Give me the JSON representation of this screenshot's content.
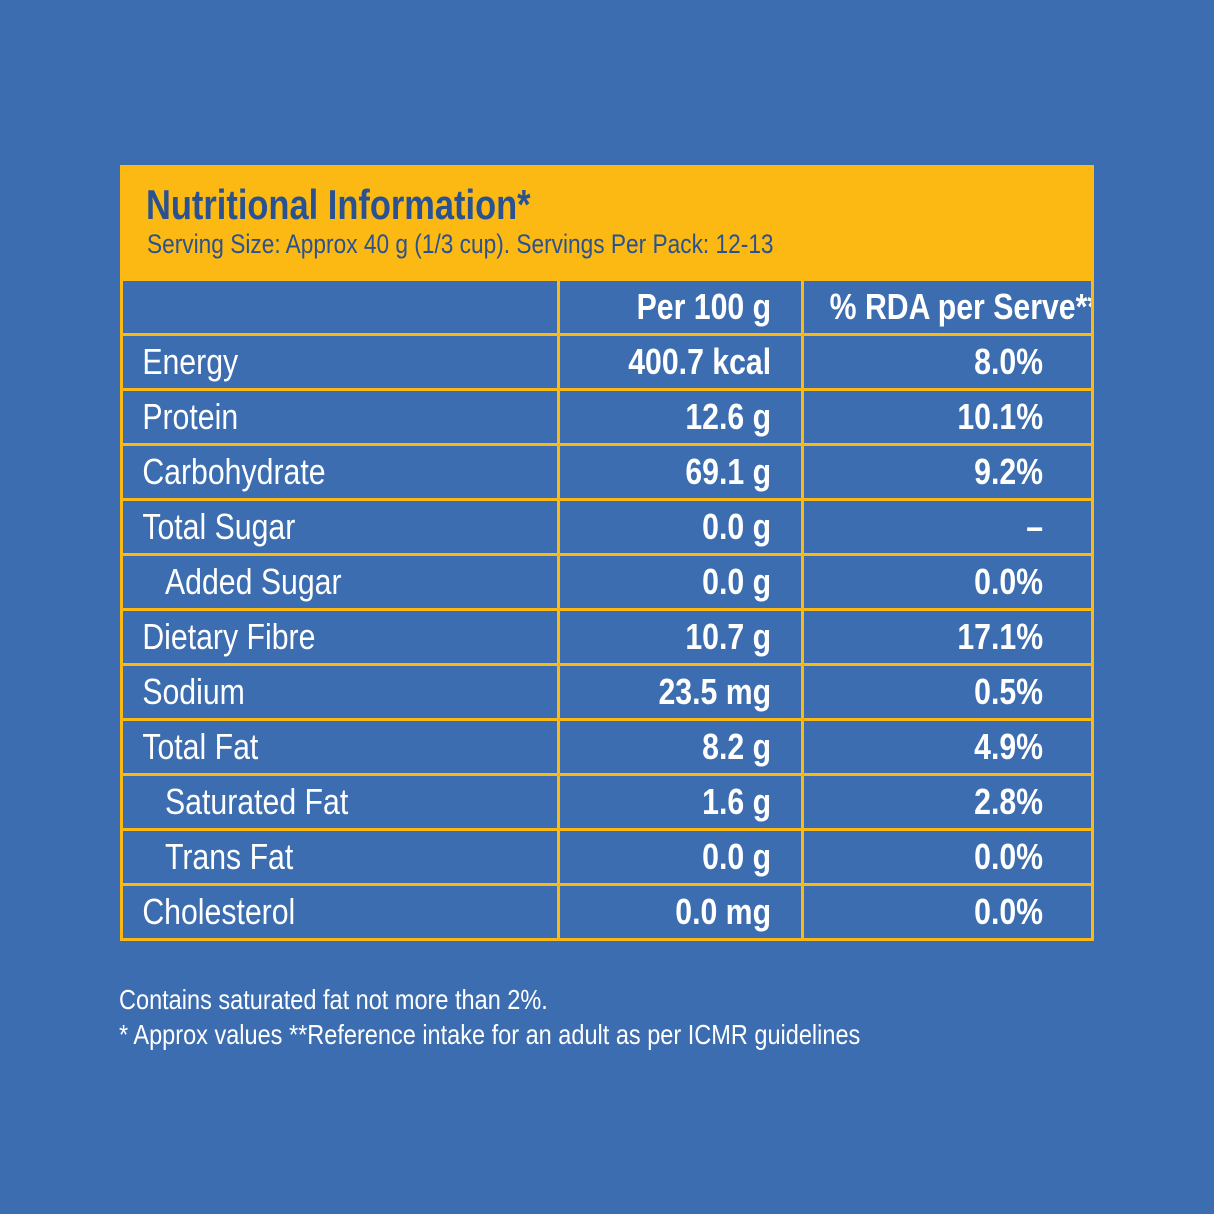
{
  "colors": {
    "background": "#3b6db0",
    "accent": "#fdb913",
    "title": "#2a5290"
  },
  "header": {
    "title": "Nutritional Information*",
    "subtitle": "Serving Size: Approx 40 g (1/3 cup). Servings Per Pack: 12-13"
  },
  "columns": [
    "",
    "Per 100 g",
    "% RDA per Serve**"
  ],
  "rows": [
    {
      "name": "Energy",
      "per100": "400.7 kcal",
      "rda": "8.0%"
    },
    {
      "name": "Protein",
      "per100": "12.6 g",
      "rda": "10.1%"
    },
    {
      "name": "Carbohydrate",
      "per100": "69.1 g",
      "rda": "9.2%"
    },
    {
      "name": "Total Sugar",
      "per100": "0.0 g",
      "rda": "–"
    },
    {
      "name": "Added Sugar",
      "per100": "0.0 g",
      "rda": "0.0%",
      "indent": true
    },
    {
      "name": "Dietary Fibre",
      "per100": "10.7 g",
      "rda": "17.1%"
    },
    {
      "name": "Sodium",
      "per100": "23.5 mg",
      "rda": "0.5%"
    },
    {
      "name": "Total Fat",
      "per100": "8.2 g",
      "rda": "4.9%"
    },
    {
      "name": "Saturated Fat",
      "per100": "1.6 g",
      "rda": "2.8%",
      "indent": true
    },
    {
      "name": "Trans Fat",
      "per100": "0.0 g",
      "rda": "0.0%",
      "indent": true
    },
    {
      "name": "Cholesterol",
      "per100": "0.0 mg",
      "rda": "0.0%"
    }
  ],
  "footnotes": [
    "Contains saturated fat not more than 2%.",
    "* Approx values **Reference intake for an adult as per ICMR guidelines"
  ]
}
